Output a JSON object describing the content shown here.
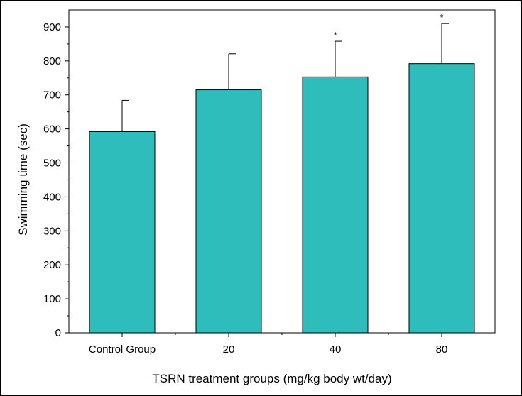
{
  "chart_data": {
    "type": "bar",
    "title": "",
    "xlabel": "TSRN treatment groups (mg/kg body wt/day)",
    "ylabel": "Swimming time (sec)",
    "categories": [
      "Control Group",
      "20",
      "40",
      "80"
    ],
    "values": [
      592,
      715,
      753,
      792
    ],
    "error_upper": [
      684,
      821,
      858,
      910
    ],
    "significance": [
      "",
      "",
      "*",
      "*"
    ],
    "ylim": [
      0,
      950
    ],
    "yticks": [
      0,
      100,
      200,
      300,
      400,
      500,
      600,
      700,
      800,
      900
    ],
    "ytick_labels": [
      "0",
      "100",
      "200",
      "300",
      "400",
      "500",
      "600",
      "700",
      "800",
      "900"
    ],
    "bar_color": "#2EBDBA",
    "grid": false
  }
}
